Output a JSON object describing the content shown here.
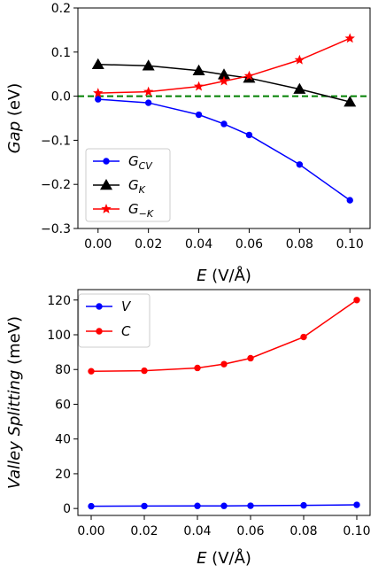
{
  "chart_data": [
    {
      "type": "line",
      "xlabel_var": "E",
      "xlabel_unit": "(V/Å)",
      "ylabel_var": "Gap",
      "ylabel_unit": "(eV)",
      "x": [
        0.0,
        0.02,
        0.04,
        0.05,
        0.06,
        0.08,
        0.1
      ],
      "xticks": [
        "0.00",
        "0.02",
        "0.04",
        "0.06",
        "0.08",
        "0.10"
      ],
      "xtick_values": [
        0.0,
        0.02,
        0.04,
        0.06,
        0.08,
        0.1
      ],
      "xlim": [
        -0.008,
        0.108
      ],
      "ylim": [
        -0.3,
        0.2
      ],
      "yticks": [
        "−0.3",
        "−0.2",
        "−0.1",
        "0.0",
        "0.1",
        "0.2"
      ],
      "ytick_values": [
        -0.3,
        -0.2,
        -0.1,
        0.0,
        0.1,
        0.2
      ],
      "reference_line": {
        "y": 0.0,
        "color": "#008000",
        "style": "dashed"
      },
      "legend_position": "lower-left",
      "series": [
        {
          "base": "G",
          "sub": "CV",
          "color": "#0000ff",
          "marker": "circle",
          "values": [
            -0.007,
            -0.015,
            -0.042,
            -0.063,
            -0.088,
            -0.155,
            -0.236
          ]
        },
        {
          "base": "G",
          "sub": "K",
          "color": "#000000",
          "marker": "triangle",
          "values": [
            0.072,
            0.069,
            0.058,
            0.049,
            0.041,
            0.016,
            -0.013
          ]
        },
        {
          "base": "G",
          "sub": "−K",
          "color": "#ff0000",
          "marker": "star",
          "values": [
            0.007,
            0.01,
            0.022,
            0.034,
            0.046,
            0.082,
            0.131
          ]
        }
      ]
    },
    {
      "type": "line",
      "xlabel_var": "E",
      "xlabel_unit": "(V/Å)",
      "ylabel_var": "Valley Splitting",
      "ylabel_unit": "(meV)",
      "x": [
        0.0,
        0.02,
        0.04,
        0.05,
        0.06,
        0.08,
        0.1
      ],
      "xticks": [
        "0.00",
        "0.02",
        "0.04",
        "0.06",
        "0.08",
        "0.10"
      ],
      "xtick_values": [
        0.0,
        0.02,
        0.04,
        0.06,
        0.08,
        0.1
      ],
      "xlim": [
        -0.005,
        0.105
      ],
      "ylim": [
        -4,
        126
      ],
      "yticks": [
        "0",
        "20",
        "40",
        "60",
        "80",
        "100",
        "120"
      ],
      "ytick_values": [
        0,
        20,
        40,
        60,
        80,
        100,
        120
      ],
      "legend_position": "top-left",
      "series": [
        {
          "name": "V",
          "color": "#0000ff",
          "marker": "circle",
          "values": [
            1.3,
            1.4,
            1.5,
            1.5,
            1.6,
            1.8,
            2.1
          ]
        },
        {
          "name": "C",
          "color": "#ff0000",
          "marker": "circle",
          "values": [
            79.0,
            79.3,
            80.9,
            83.1,
            86.5,
            98.7,
            120.0
          ]
        }
      ]
    }
  ]
}
